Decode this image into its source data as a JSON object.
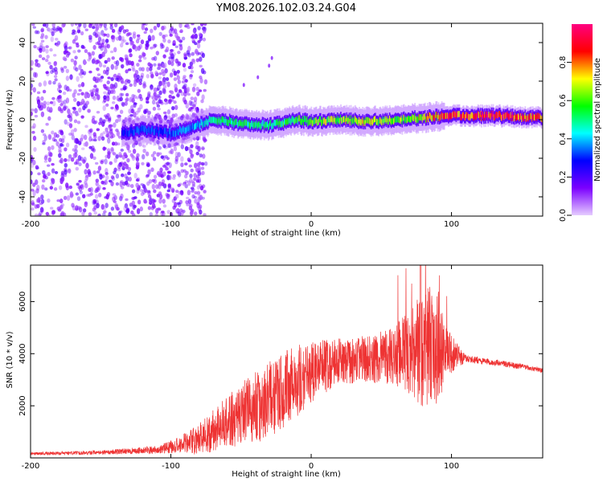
{
  "title": "YM08.2026.102.03.24.G04",
  "chart_data": [
    {
      "type": "heatmap",
      "title": "YM08.2026.102.03.24.G04",
      "xlabel": "Height of straight line (km)",
      "ylabel": "Frequency (Hz)",
      "xlim": [
        -200,
        165
      ],
      "ylim": [
        -50,
        50
      ],
      "xticks": [
        -200,
        -100,
        0,
        100
      ],
      "yticks": [
        -40,
        -20,
        0,
        20,
        40
      ],
      "colorbar": {
        "label": "Normalized spectral amplitude",
        "range": [
          0,
          1
        ],
        "ticks": [
          "0.0",
          "0.2",
          "0.4",
          "0.6",
          "0.8"
        ],
        "colormap": [
          "#e6ccff",
          "#7b00ff",
          "#0000ff",
          "#00ffff",
          "#00ff00",
          "#ffff00",
          "#ff0000",
          "#ff0080"
        ]
      },
      "ridge": {
        "description": "Narrow band of peak amplitude near 0 Hz",
        "x_km": [
          -135,
          -120,
          -100,
          -85,
          -70,
          -50,
          -30,
          -10,
          0,
          20,
          40,
          60,
          80,
          100,
          130,
          165
        ],
        "freq_hz": [
          -7,
          -5,
          -7,
          -4,
          0,
          -2,
          -3,
          0,
          -1,
          0,
          -1,
          0,
          1,
          2,
          2,
          1
        ],
        "amplitude": [
          0.3,
          0.35,
          0.35,
          0.4,
          0.5,
          0.55,
          0.55,
          0.6,
          0.65,
          0.7,
          0.7,
          0.65,
          0.75,
          0.9,
          0.95,
          0.85
        ]
      },
      "scatter_region": {
        "x_km": [
          -200,
          -85
        ],
        "freq_hz": [
          -50,
          50
        ],
        "amplitude": 0.15
      }
    },
    {
      "type": "line",
      "xlabel": "Height of straight line (km)",
      "ylabel": "SNR (10 * v/v)",
      "xlim": [
        -200,
        165
      ],
      "ylim": [
        0,
        7400
      ],
      "xticks": [
        -200,
        -100,
        0,
        100
      ],
      "yticks": [
        2000,
        4000,
        6000
      ],
      "color": "#ee3333",
      "envelope": {
        "x_km": [
          -200,
          -150,
          -110,
          -95,
          -80,
          -65,
          -55,
          -45,
          -35,
          -25,
          -15,
          -5,
          5,
          20,
          40,
          60,
          70,
          80,
          90,
          97,
          110,
          130,
          150,
          165
        ],
        "baseline": [
          150,
          200,
          300,
          450,
          650,
          1100,
          1400,
          1700,
          1900,
          2300,
          2700,
          3000,
          3300,
          3600,
          3700,
          3800,
          3900,
          3950,
          4000,
          3950,
          3800,
          3650,
          3500,
          3350
        ],
        "spread": [
          60,
          80,
          150,
          300,
          600,
          900,
          1100,
          1300,
          1400,
          1500,
          1500,
          1300,
          1100,
          900,
          900,
          1100,
          1700,
          2400,
          2200,
          900,
          150,
          120,
          110,
          100
        ]
      },
      "peak": {
        "x_km": 78,
        "snr": 7400
      }
    }
  ]
}
